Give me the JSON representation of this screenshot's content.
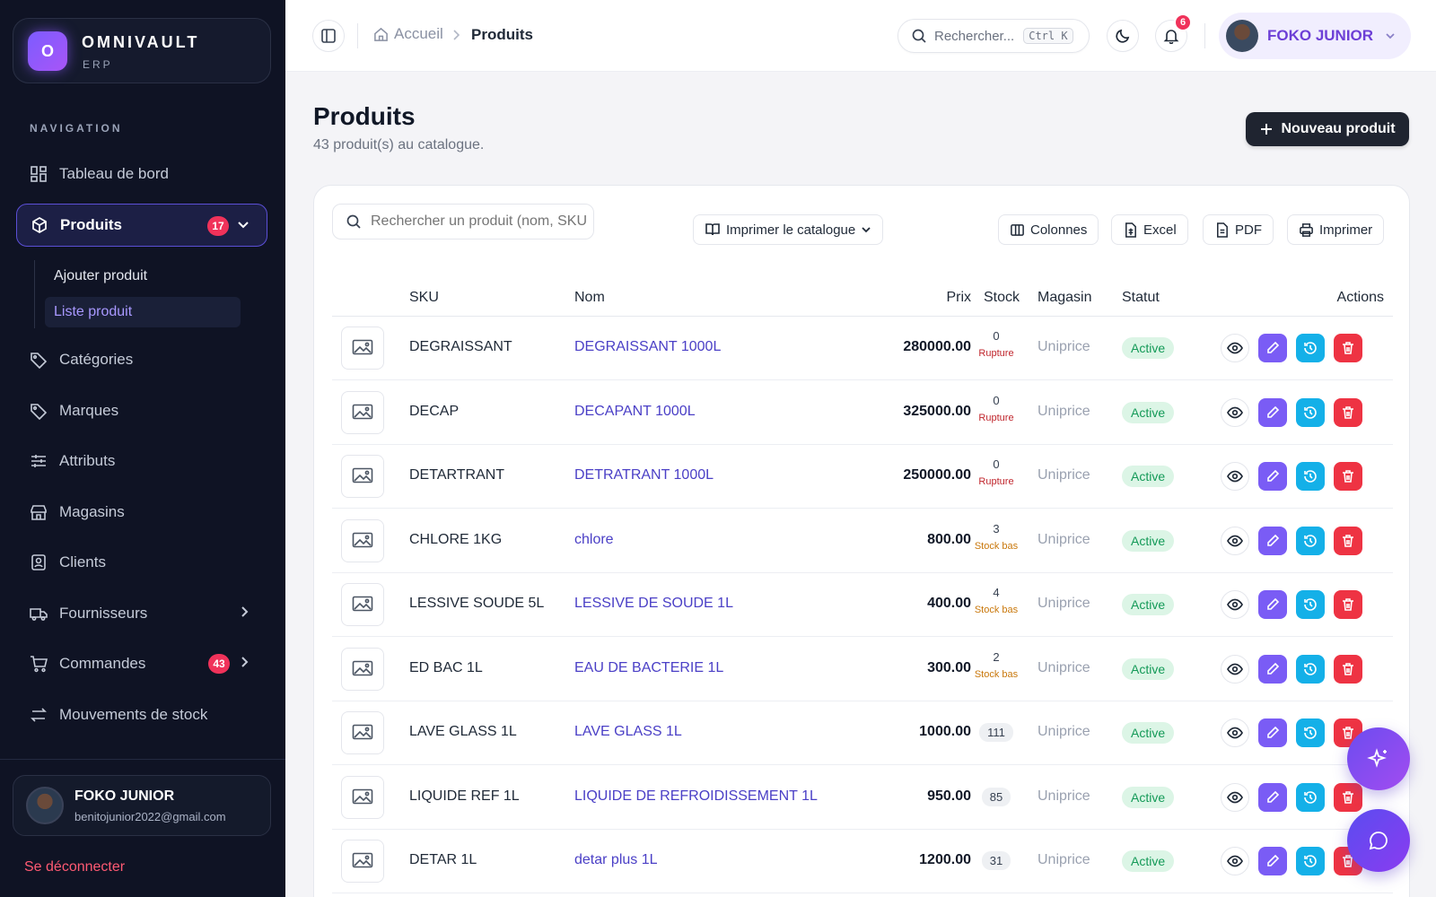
{
  "brand": {
    "logo_letter": "O",
    "name": "OMNIVAULT",
    "sub": "ERP"
  },
  "sidebar": {
    "heading": "NAVIGATION",
    "items": [
      {
        "label": "Tableau de bord",
        "icon": "dashboard-icon"
      },
      {
        "label": "Produits",
        "icon": "box-icon",
        "badge": "17"
      },
      {
        "label": "Catégories",
        "icon": "tag-icon"
      },
      {
        "label": "Marques",
        "icon": "tag-icon"
      },
      {
        "label": "Attributs",
        "icon": "sliders-icon"
      },
      {
        "label": "Magasins",
        "icon": "store-icon"
      },
      {
        "label": "Clients",
        "icon": "contact-icon"
      },
      {
        "label": "Fournisseurs",
        "icon": "truck-icon"
      },
      {
        "label": "Commandes",
        "icon": "cart-icon",
        "badge": "43"
      },
      {
        "label": "Mouvements de stock",
        "icon": "arrows-icon"
      }
    ],
    "sub_items": [
      {
        "label": "Ajouter produit"
      },
      {
        "label": "Liste produit"
      }
    ],
    "user": {
      "name": "FOKO JUNIOR",
      "email": "benitojunior2022@gmail.com"
    },
    "logout": "Se déconnecter"
  },
  "topbar": {
    "breadcrumb_home": "Accueil",
    "breadcrumb_current": "Produits",
    "search_placeholder": "Rechercher...",
    "shortcut": "Ctrl K",
    "notifications": "6",
    "user_name": "FOKO JUNIOR"
  },
  "page": {
    "title": "Produits",
    "subtitle": "43 produit(s) au catalogue.",
    "new_button": "Nouveau produit"
  },
  "toolbar": {
    "search_placeholder": "Rechercher un produit (nom, SKU...)",
    "print_catalog": "Imprimer le catalogue",
    "columns": "Colonnes",
    "excel": "Excel",
    "pdf": "PDF",
    "print": "Imprimer"
  },
  "table": {
    "headers": {
      "sku": "SKU",
      "nom": "Nom",
      "prix": "Prix",
      "stock": "Stock",
      "magasin": "Magasin",
      "statut": "Statut",
      "actions": "Actions"
    },
    "rows": [
      {
        "sku": "DEGRAISSANT",
        "nom": "DEGRAISSANT 1000L",
        "prix": "280000.00",
        "stock": "0",
        "stock_label": "Rupture",
        "magasin": "Uniprice",
        "statut": "Active"
      },
      {
        "sku": "DECAP",
        "nom": "DECAPANT 1000L",
        "prix": "325000.00",
        "stock": "0",
        "stock_label": "Rupture",
        "magasin": "Uniprice",
        "statut": "Active"
      },
      {
        "sku": "DETARTRANT",
        "nom": "DETRATRANT 1000L",
        "prix": "250000.00",
        "stock": "0",
        "stock_label": "Rupture",
        "magasin": "Uniprice",
        "statut": "Active"
      },
      {
        "sku": "CHLORE 1KG",
        "nom": "chlore",
        "prix": "800.00",
        "stock": "3",
        "stock_label": "Stock bas",
        "magasin": "Uniprice",
        "statut": "Active"
      },
      {
        "sku": "LESSIVE SOUDE 5L",
        "nom": "LESSIVE DE SOUDE 1L",
        "prix": "400.00",
        "stock": "4",
        "stock_label": "Stock bas",
        "magasin": "Uniprice",
        "statut": "Active"
      },
      {
        "sku": "ED BAC 1L",
        "nom": "EAU DE BACTERIE 1L",
        "prix": "300.00",
        "stock": "2",
        "stock_label": "Stock bas",
        "magasin": "Uniprice",
        "statut": "Active"
      },
      {
        "sku": "LAVE GLASS 1L",
        "nom": "LAVE GLASS 1L",
        "prix": "1000.00",
        "stock": "111",
        "stock_label": "",
        "magasin": "Uniprice",
        "statut": "Active"
      },
      {
        "sku": "LIQUIDE REF 1L",
        "nom": "LIQUIDE DE REFROIDISSEMENT 1L",
        "prix": "950.00",
        "stock": "85",
        "stock_label": "",
        "magasin": "Uniprice",
        "statut": "Active"
      },
      {
        "sku": "DETAR 1L",
        "nom": "detar plus 1L",
        "prix": "1200.00",
        "stock": "31",
        "stock_label": "",
        "magasin": "Uniprice",
        "statut": "Active"
      }
    ]
  },
  "colors": {
    "rupture": "#c0262d",
    "stock_bas": "#c9780c",
    "accent": "#6d3fd6"
  }
}
